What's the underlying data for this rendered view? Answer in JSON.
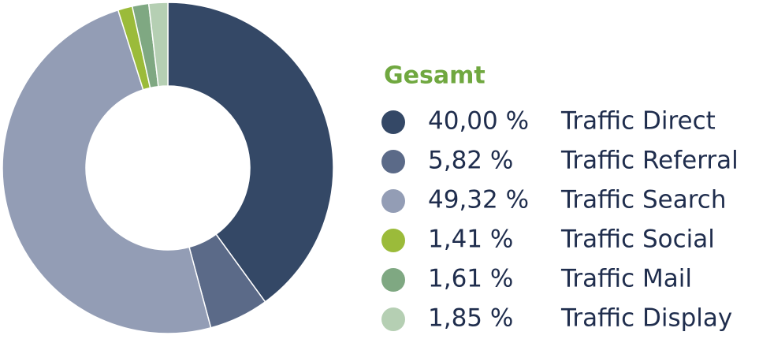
{
  "chart_data": {
    "type": "donut",
    "legend_title": "Gesamt",
    "categories": [
      "Traffic Direct",
      "Traffic Referral",
      "Traffic Search",
      "Traffic Social",
      "Traffic Mail",
      "Traffic Display"
    ],
    "values": [
      40.0,
      5.82,
      49.32,
      1.41,
      1.61,
      1.85
    ],
    "value_labels": [
      "40,00 %",
      "5,82 %",
      "49,32 %",
      "1,41 %",
      "1,61 %",
      "1,85 %"
    ],
    "colors": [
      "#344866",
      "#5b6a88",
      "#939db5",
      "#9bbb3a",
      "#7fa882",
      "#b5cfb3"
    ],
    "legend": "right"
  }
}
